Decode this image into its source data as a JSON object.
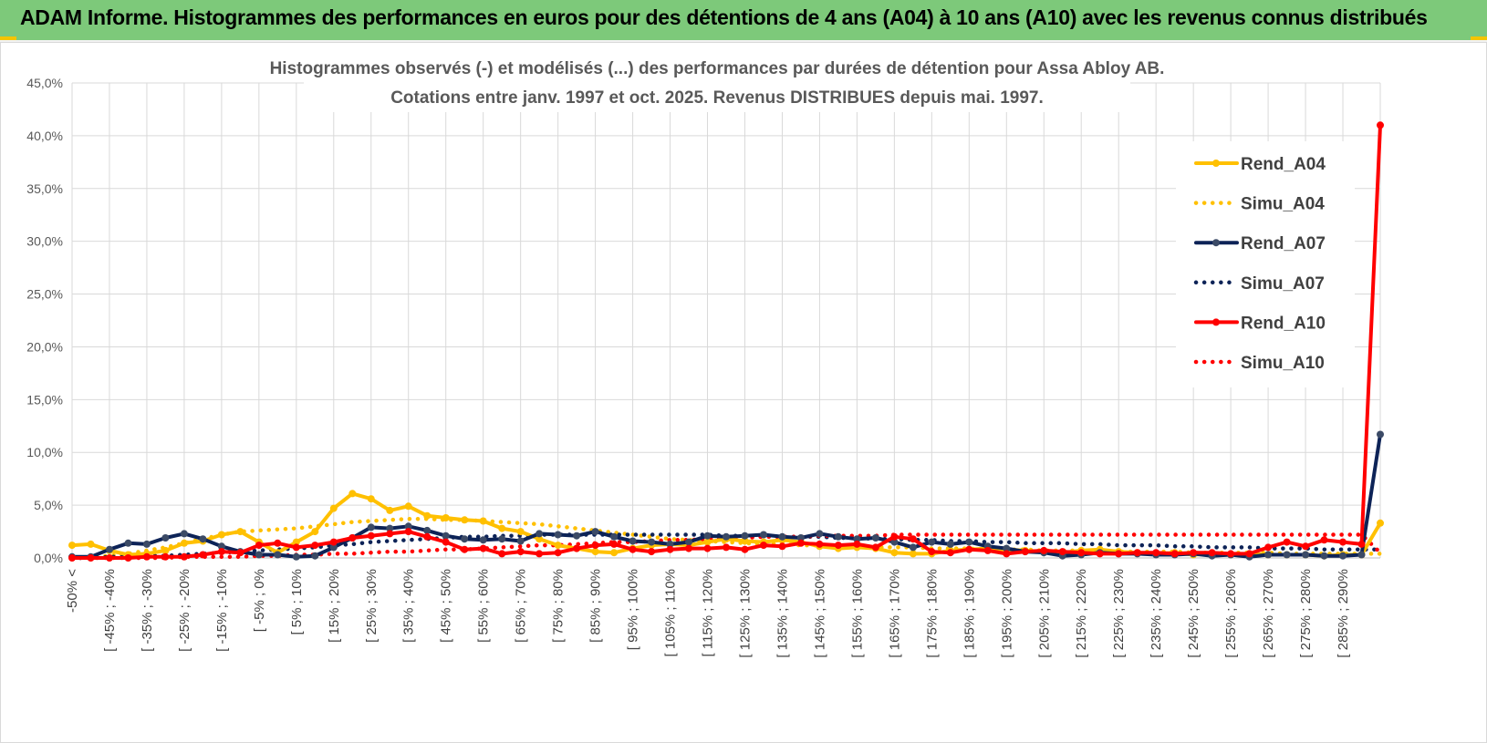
{
  "header": {
    "title": "ADAM Informe. Histogrammes des performances en euros pour des détentions de 4 ans (A04) à 10 ans (A10) avec les revenus connus distribués",
    "bg_color": "#7dc97a"
  },
  "chart_data": {
    "type": "line",
    "title": "Histogrammes observés (-) et modélisés (...) des performances par durées de détention pour Assa Abloy AB.",
    "subtitle": "Cotations entre janv. 1997 et oct. 2025.  Revenus DISTRIBUES depuis mai. 1997.",
    "xlabel": "",
    "ylabel": "",
    "ylim": [
      0,
      45
    ],
    "yticks": [
      "0,0%",
      "5,0%",
      "10,0%",
      "15,0%",
      "20,0%",
      "25,0%",
      "30,0%",
      "35,0%",
      "40,0%",
      "45,0%"
    ],
    "grid": true,
    "legend_position": "top-right",
    "x_tick_labels": [
      "-50% <",
      "[ -45% ; -40%",
      "[ -35% ; -30%",
      "[ -25% ; -20%",
      "[ -15% ; -10%",
      "[ -5% ; 0%",
      "[ 5% ; 10%",
      "[ 15% ; 20%",
      "[ 25% ; 30%",
      "[ 35% ; 40%",
      "[ 45% ; 50%",
      "[ 55% ; 60%",
      "[ 65% ; 70%",
      "[ 75% ; 80%",
      "[ 85% ; 90%",
      "[ 95% ; 100%",
      "[ 105% ; 110%",
      "[ 115% ; 120%",
      "[ 125% ; 130%",
      "[ 135% ; 140%",
      "[ 145% ; 150%",
      "[ 155% ; 160%",
      "[ 165% ; 170%",
      "[ 175% ; 180%",
      "[ 185% ; 190%",
      "[ 195% ; 200%",
      "[ 205% ; 210%",
      "[ 215% ; 220%",
      "[ 225% ; 230%",
      "[ 235% ; 240%",
      "[ 245% ; 250%",
      "[ 255% ; 260%",
      "[ 265% ; 270%",
      "[ 275% ; 280%",
      "[ 285% ; 290%"
    ],
    "series": [
      {
        "name": "Rend_A04",
        "color": "#ffc000",
        "style": "solid",
        "markers": true,
        "values": [
          1.2,
          1.3,
          0.7,
          0.3,
          0.4,
          0.7,
          1.4,
          1.6,
          2.2,
          2.5,
          1.5,
          0.5,
          1.5,
          2.5,
          4.7,
          6.1,
          5.6,
          4.5,
          4.9,
          4.0,
          3.8,
          3.6,
          3.5,
          2.8,
          2.5,
          1.8,
          1.2,
          0.9,
          0.6,
          0.5,
          0.9,
          1.2,
          1.3,
          1.2,
          1.5,
          1.8,
          1.6,
          1.5,
          1.7,
          1.5,
          1.1,
          0.9,
          1.0,
          0.9,
          0.5,
          0.4,
          0.4,
          0.7,
          0.8,
          0.9,
          0.8,
          0.7,
          0.6,
          0.5,
          0.7,
          0.8,
          0.6,
          0.5,
          0.4,
          0.5,
          0.3,
          0.4,
          0.3,
          0.4,
          0.3,
          0.3,
          0.3,
          0.2,
          0.3,
          0.3,
          3.3
        ]
      },
      {
        "name": "Simu_A04",
        "color": "#ffc000",
        "style": "dotted",
        "markers": false,
        "values": [
          0.0,
          0.1,
          0.2,
          0.4,
          0.7,
          1.0,
          1.4,
          1.8,
          2.2,
          2.5,
          2.6,
          2.7,
          2.8,
          3.0,
          3.2,
          3.4,
          3.5,
          3.6,
          3.7,
          3.7,
          3.6,
          3.6,
          3.5,
          3.4,
          3.3,
          3.2,
          3.0,
          2.8,
          2.6,
          2.4,
          2.2,
          2.0,
          1.8,
          1.7,
          1.6,
          1.5,
          1.4,
          1.3,
          1.3,
          1.2,
          1.2,
          1.1,
          1.1,
          1.0,
          1.0,
          1.0,
          0.9,
          0.9,
          0.9,
          0.8,
          0.8,
          0.8,
          0.7,
          0.7,
          0.7,
          0.7,
          0.6,
          0.6,
          0.6,
          0.6,
          0.5,
          0.5,
          0.5,
          0.5,
          0.5,
          0.4,
          0.4,
          0.4,
          0.4,
          0.4,
          0.4
        ]
      },
      {
        "name": "Rend_A07",
        "color": "#0d2357",
        "style": "solid",
        "markers": true,
        "values": [
          0.1,
          0.1,
          0.8,
          1.4,
          1.3,
          1.9,
          2.3,
          1.8,
          1.1,
          0.6,
          0.3,
          0.3,
          0.1,
          0.2,
          1.0,
          1.9,
          2.9,
          2.8,
          3.0,
          2.6,
          2.1,
          1.8,
          1.7,
          1.8,
          1.6,
          2.3,
          2.2,
          2.1,
          2.5,
          2.0,
          1.6,
          1.5,
          1.3,
          1.5,
          2.1,
          2.0,
          2.1,
          2.2,
          2.0,
          1.9,
          2.3,
          2.0,
          1.8,
          1.9,
          1.5,
          1.0,
          1.5,
          1.3,
          1.5,
          1.1,
          0.9,
          0.6,
          0.5,
          0.2,
          0.3,
          0.5,
          0.4,
          0.4,
          0.3,
          0.3,
          0.4,
          0.2,
          0.3,
          0.1,
          0.3,
          0.3,
          0.3,
          0.2,
          0.2,
          0.3,
          11.7
        ]
      },
      {
        "name": "Simu_A07",
        "color": "#0d2357",
        "style": "dotted",
        "markers": false,
        "values": [
          0.0,
          0.0,
          0.1,
          0.1,
          0.2,
          0.2,
          0.3,
          0.4,
          0.5,
          0.6,
          0.7,
          0.8,
          0.9,
          1.0,
          1.2,
          1.3,
          1.5,
          1.6,
          1.7,
          1.8,
          1.9,
          2.0,
          2.0,
          2.1,
          2.1,
          2.2,
          2.2,
          2.2,
          2.2,
          2.2,
          2.2,
          2.2,
          2.2,
          2.2,
          2.2,
          2.1,
          2.1,
          2.1,
          2.0,
          2.0,
          2.0,
          1.9,
          1.9,
          1.8,
          1.8,
          1.7,
          1.7,
          1.6,
          1.6,
          1.5,
          1.5,
          1.4,
          1.4,
          1.4,
          1.3,
          1.3,
          1.2,
          1.2,
          1.2,
          1.1,
          1.1,
          1.0,
          1.0,
          1.0,
          0.9,
          0.9,
          0.9,
          0.8,
          0.8,
          0.8,
          0.8
        ]
      },
      {
        "name": "Rend_A10",
        "color": "#ff0000",
        "style": "solid",
        "markers": true,
        "values": [
          0.0,
          0.0,
          0.0,
          0.0,
          0.1,
          0.1,
          0.1,
          0.3,
          0.6,
          0.5,
          1.2,
          1.4,
          1.0,
          1.2,
          1.5,
          1.9,
          2.1,
          2.3,
          2.5,
          2.0,
          1.5,
          0.8,
          0.9,
          0.4,
          0.6,
          0.4,
          0.5,
          0.9,
          1.2,
          1.3,
          0.8,
          0.6,
          0.8,
          0.9,
          0.9,
          1.0,
          0.8,
          1.2,
          1.1,
          1.4,
          1.3,
          1.2,
          1.3,
          1.0,
          2.0,
          1.8,
          0.6,
          0.5,
          0.8,
          0.7,
          0.4,
          0.6,
          0.7,
          0.6,
          0.5,
          0.4,
          0.4,
          0.5,
          0.5,
          0.4,
          0.5,
          0.5,
          0.4,
          0.4,
          1.0,
          1.5,
          1.1,
          1.7,
          1.5,
          1.3,
          41.0
        ]
      },
      {
        "name": "Simu_A10",
        "color": "#ff0000",
        "style": "dotted",
        "markers": false,
        "values": [
          0.0,
          0.0,
          0.0,
          0.0,
          0.0,
          0.0,
          0.1,
          0.1,
          0.1,
          0.1,
          0.2,
          0.2,
          0.3,
          0.3,
          0.4,
          0.4,
          0.5,
          0.6,
          0.6,
          0.7,
          0.8,
          0.8,
          0.9,
          1.0,
          1.1,
          1.2,
          1.2,
          1.3,
          1.4,
          1.5,
          1.5,
          1.6,
          1.7,
          1.7,
          1.8,
          1.9,
          1.9,
          2.0,
          2.0,
          2.0,
          2.1,
          2.1,
          2.1,
          2.1,
          2.2,
          2.2,
          2.2,
          2.2,
          2.2,
          2.2,
          2.2,
          2.2,
          2.2,
          2.2,
          2.2,
          2.2,
          2.2,
          2.2,
          2.2,
          2.2,
          2.2,
          2.2,
          2.2,
          2.2,
          2.2,
          2.2,
          2.2,
          2.2,
          2.2,
          2.2,
          0.5
        ]
      }
    ]
  }
}
